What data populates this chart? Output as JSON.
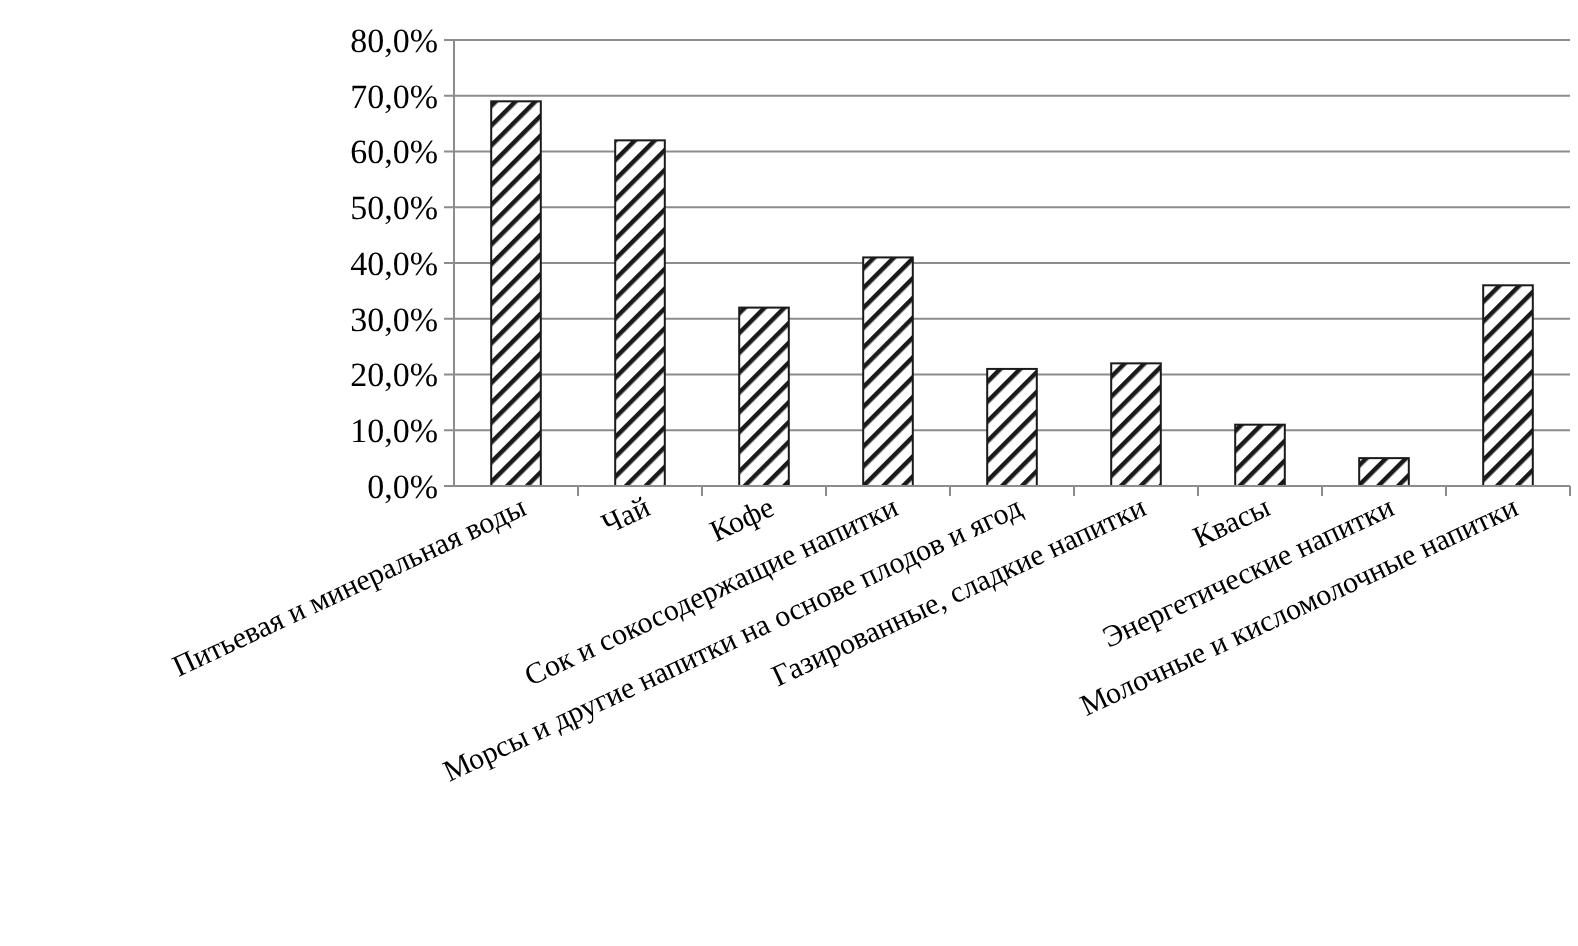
{
  "chart_data": {
    "type": "bar",
    "categories": [
      "Питьевая и минеральная воды",
      "Чай",
      "Кофе",
      "Сок и сокосодержащие напитки",
      "Морсы и другие напитки на основе плодов и ягод",
      "Газированные, сладкие напитки",
      "Квасы",
      "Энергетические напитки",
      "Молочные и кисломолочные напитки"
    ],
    "series": [
      {
        "color": "#1a1a1a",
        "values": [
          69,
          62,
          32,
          41,
          21,
          22,
          11,
          5,
          36
        ]
      }
    ],
    "ylim": [
      0,
      80
    ],
    "yticks": [
      {
        "value": 0,
        "label": "0,0%"
      },
      {
        "value": 10,
        "label": "10,0%"
      },
      {
        "value": 20,
        "label": "20,0%"
      },
      {
        "value": 30,
        "label": "30,0%"
      },
      {
        "value": 40,
        "label": "40,0%"
      },
      {
        "value": 50,
        "label": "50,0%"
      },
      {
        "value": 60,
        "label": "60,0%"
      },
      {
        "value": 70,
        "label": "70,0%"
      },
      {
        "value": 80,
        "label": "80,0%"
      }
    ],
    "grid": "y"
  }
}
